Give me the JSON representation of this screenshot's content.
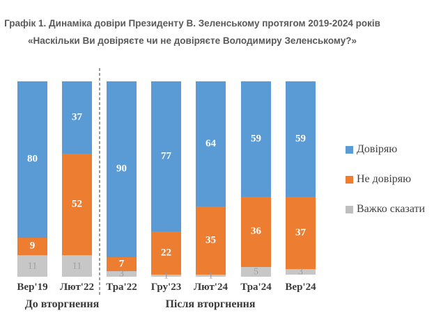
{
  "title": {
    "line1": "Графік 1. Динаміка довіри Президенту В. Зеленському протягом 2019-2024 років",
    "line2": "«Наскільки Ви довіряєте чи не довіряєте Володимиру Зеленському?»"
  },
  "chart_data": {
    "type": "bar",
    "subtype": "stacked-100-percent-column",
    "categories": [
      "Вер'19",
      "Лют'22",
      "Тра'22",
      "Гру'23",
      "Лют'24",
      "Тра'24",
      "Вер'24"
    ],
    "series": [
      {
        "name": "Довіряю",
        "color": "#5B9BD5",
        "label_style": "white-bold",
        "values": [
          80,
          37,
          90,
          77,
          64,
          59,
          59
        ]
      },
      {
        "name": "Не довіряю",
        "color": "#ED7D31",
        "label_style": "white-bold",
        "values": [
          9,
          52,
          7,
          22,
          35,
          36,
          37
        ]
      },
      {
        "name": "Важко сказати",
        "color": "#C7C7C7",
        "label_style": "gray",
        "values": [
          11,
          11,
          3,
          1,
          1,
          5,
          3
        ]
      }
    ],
    "groups": [
      {
        "label": "До вторгнення",
        "category_span": [
          "Вер'19",
          "Лют'22"
        ]
      },
      {
        "label": "Після вторгнення",
        "category_span": [
          "Тра'22",
          "Вер'24"
        ]
      }
    ],
    "separator_note": "vertical dashed line between Лют'22 and Тра'22",
    "legend_position": "right",
    "legend_swatch_colors": [
      "#5B9BD5",
      "#ED7D31",
      "#BFBFBF"
    ],
    "ylim": [
      0,
      100
    ],
    "grid": false
  }
}
